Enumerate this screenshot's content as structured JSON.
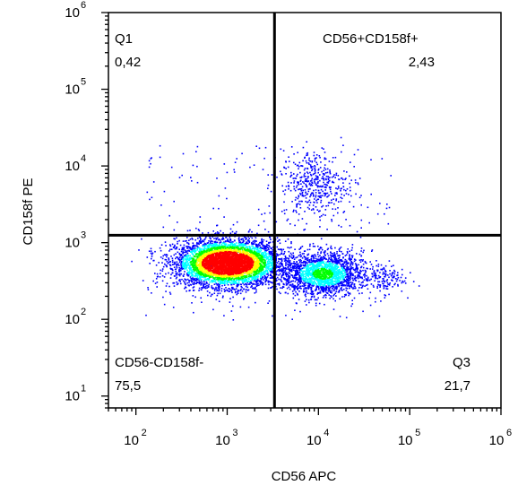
{
  "chart_data": {
    "type": "scatter",
    "subtype": "flow-cytometry-density-dot-plot",
    "xlabel": "CD56 APC",
    "ylabel": "CD158f PE",
    "x_scale": "log",
    "y_scale": "log",
    "xlim": [
      50,
      1000000
    ],
    "ylim": [
      7,
      1000000
    ],
    "x_ticks": [
      {
        "value": 100,
        "base": "10",
        "exp": "2"
      },
      {
        "value": 1000,
        "base": "10",
        "exp": "3"
      },
      {
        "value": 10000,
        "base": "10",
        "exp": "4"
      },
      {
        "value": 100000,
        "base": "10",
        "exp": "5"
      },
      {
        "value": 1000000,
        "base": "10",
        "exp": "6"
      }
    ],
    "y_ticks": [
      {
        "value": 10,
        "base": "10",
        "exp": "1"
      },
      {
        "value": 100,
        "base": "10",
        "exp": "2"
      },
      {
        "value": 1000,
        "base": "10",
        "exp": "3"
      },
      {
        "value": 10000,
        "base": "10",
        "exp": "4"
      },
      {
        "value": 100000,
        "base": "10",
        "exp": "5"
      },
      {
        "value": 1000000,
        "base": "10",
        "exp": "6"
      }
    ],
    "gate": {
      "x": 3300,
      "y": 1250
    },
    "quadrants": [
      {
        "name": "Q1",
        "value": "0,42",
        "position": "top-left"
      },
      {
        "name": "CD56+CD158f+",
        "value": "2,43",
        "position": "top-right"
      },
      {
        "name": "CD56-CD158f-",
        "value": "75,5",
        "position": "bottom-left"
      },
      {
        "name": "Q3",
        "value": "21,7",
        "position": "bottom-right"
      }
    ],
    "populations": [
      {
        "x": 1000,
        "y": 550,
        "count": 5000,
        "spread_x": 0.28,
        "spread_y": 0.15
      },
      {
        "x": 11000,
        "y": 400,
        "count": 1900,
        "spread_x": 0.22,
        "spread_y": 0.14
      },
      {
        "x": 9000,
        "y": 6000,
        "count": 420,
        "spread_x": 0.18,
        "spread_y": 0.22
      },
      {
        "x": 50000,
        "y": 350,
        "count": 140,
        "spread_x": 0.12,
        "spread_y": 0.1
      }
    ],
    "colors": {
      "low": "#0000ff",
      "mid1": "#00ffff",
      "mid2": "#00ff00",
      "mid3": "#ffff00",
      "high": "#ff0000",
      "gate": "#000000"
    }
  }
}
